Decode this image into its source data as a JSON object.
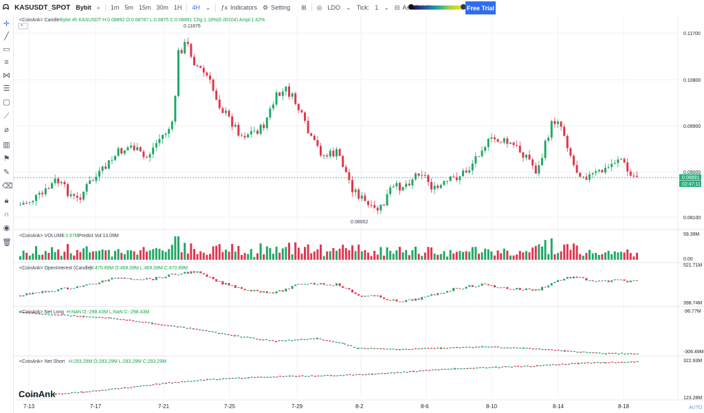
{
  "toolbar": {
    "symbol": "KASUSDT_SPOT",
    "exchange": "Bybit",
    "timeframes": [
      "1m",
      "5m",
      "15m",
      "30m",
      "1H",
      "4H"
    ],
    "active_timeframe": "4H",
    "indicators": "Indicators",
    "setting": "Setting",
    "ldo": "LDO",
    "tick_label": "Tick:",
    "tick_value": "1",
    "cluster": "Ask-Bid Cluster",
    "trial": "Free Trial"
  },
  "main": {
    "title_prefix": "<CoinAnk> Candle",
    "ohlc": "Bybit 4h KASUSDT H:0.08892 O:0.08787 L:0.0875 C:0.08891 Chg:1.18%(0.00104) Ampl:1.62%",
    "high_marker": "0.11876",
    "low_marker": "0.08002",
    "price_ticks": [
      "0.11700",
      "0.10800",
      "0.09900",
      "0.09000",
      "0.08100"
    ],
    "price_tag": "0.08891",
    "countdown": "02:47:11"
  },
  "volume": {
    "title": "<CoinAnk> VOLUME",
    "value": "3.97M",
    "predict": "Predict Vol:13.09M",
    "ticks": [
      "59.39M",
      "0.00"
    ]
  },
  "open_interest": {
    "title": "<CoinAnk> OpenInterest (Candle)",
    "ohlc": "H:470.89M O:469.09M L:469.09M C:470.89M",
    "ticks": [
      "521.71M",
      "398.74M"
    ]
  },
  "net_long": {
    "title": "<CoinAnk> Net Long",
    "ohlc": "H:NaN O:-298.43M L:NaN C:-298.43M",
    "ticks": [
      "-96.77M",
      "-306.49M"
    ]
  },
  "net_short": {
    "title": "<CoinAnk> Net Short",
    "ohlc": "H:293.29M O:293.29M L:293.29M C:293.29M",
    "ticks": [
      "322.93M",
      "123.28M"
    ]
  },
  "x_axis": [
    "7-13",
    "7-17",
    "7-21",
    "7-25",
    "7-29",
    "8-2",
    "8-6",
    "8-10",
    "8-14",
    "8-18"
  ],
  "auto_label": "AUTO",
  "logo": "CoinAnk",
  "colors": {
    "up": "#1fa866",
    "down": "#e0364d",
    "accent": "#2f6df0"
  }
}
